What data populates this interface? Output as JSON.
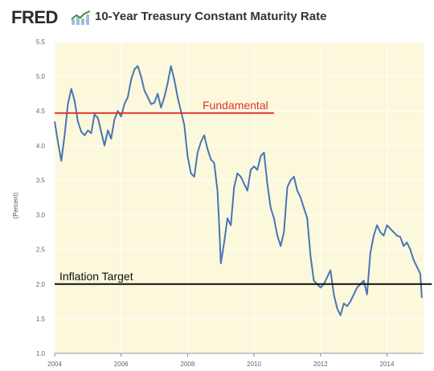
{
  "header": {
    "logo_text": "FRED",
    "title": "10-Year Treasury Constant Maturity Rate"
  },
  "chart_data": {
    "type": "line",
    "title": "10-Year Treasury Constant Maturity Rate",
    "ylabel": "(Percent)",
    "xlabel": "",
    "xlim": [
      2004,
      2015.1
    ],
    "ylim": [
      1.0,
      5.5
    ],
    "x_ticks": [
      "2004",
      "2006",
      "2008",
      "2010",
      "2012",
      "2014"
    ],
    "x_tick_values": [
      2004,
      2006,
      2008,
      2010,
      2012,
      2014
    ],
    "y_ticks": [
      "1.0",
      "1.5",
      "2.0",
      "2.5",
      "3.0",
      "3.5",
      "4.0",
      "4.5",
      "5.0",
      "5.5"
    ],
    "y_tick_values": [
      1.0,
      1.5,
      2.0,
      2.5,
      3.0,
      3.5,
      4.0,
      4.5,
      5.0,
      5.5
    ],
    "grid": true,
    "colors": {
      "line": "#4b74b3",
      "plot_bg": "#fbf8dc",
      "grid": "#ffffff",
      "fundamental": "#e0342a",
      "inflation": "#111111"
    },
    "series": [
      {
        "x": [
          2004.0,
          2004.1,
          2004.2,
          2004.3,
          2004.4,
          2004.5,
          2004.6,
          2004.7,
          2004.8,
          2004.9,
          2005.0,
          2005.1,
          2005.2,
          2005.3,
          2005.4,
          2005.5,
          2005.6,
          2005.7,
          2005.8,
          2005.9,
          2006.0,
          2006.1,
          2006.2,
          2006.3,
          2006.4,
          2006.5,
          2006.6,
          2006.7,
          2006.8,
          2006.9,
          2007.0,
          2007.1,
          2007.2,
          2007.3,
          2007.4,
          2007.5,
          2007.6,
          2007.7,
          2007.8,
          2007.9,
          2008.0,
          2008.1,
          2008.2,
          2008.3,
          2008.4,
          2008.5,
          2008.6,
          2008.7,
          2008.8,
          2008.9,
          2008.95,
          2009.0,
          2009.1,
          2009.2,
          2009.3,
          2009.4,
          2009.5,
          2009.6,
          2009.7,
          2009.8,
          2009.9,
          2010.0,
          2010.1,
          2010.2,
          2010.3,
          2010.4,
          2010.5,
          2010.6,
          2010.7,
          2010.8,
          2010.9,
          2011.0,
          2011.1,
          2011.2,
          2011.3,
          2011.4,
          2011.5,
          2011.6,
          2011.7,
          2011.8,
          2011.9,
          2012.0,
          2012.1,
          2012.2,
          2012.3,
          2012.4,
          2012.5,
          2012.6,
          2012.7,
          2012.8,
          2012.9,
          2013.0,
          2013.1,
          2013.2,
          2013.3,
          2013.4,
          2013.5,
          2013.6,
          2013.7,
          2013.8,
          2013.9,
          2014.0,
          2014.1,
          2014.2,
          2014.3,
          2014.4,
          2014.5,
          2014.6,
          2014.7,
          2014.8,
          2014.9,
          2015.0,
          2015.05
        ],
        "y": [
          4.35,
          4.05,
          3.78,
          4.15,
          4.6,
          4.82,
          4.65,
          4.35,
          4.2,
          4.15,
          4.22,
          4.18,
          4.45,
          4.4,
          4.2,
          4.0,
          4.22,
          4.1,
          4.38,
          4.5,
          4.42,
          4.6,
          4.7,
          4.95,
          5.1,
          5.15,
          5.0,
          4.8,
          4.7,
          4.6,
          4.62,
          4.75,
          4.55,
          4.7,
          4.9,
          5.15,
          4.95,
          4.7,
          4.5,
          4.3,
          3.85,
          3.6,
          3.55,
          3.9,
          4.05,
          4.15,
          3.95,
          3.8,
          3.75,
          3.35,
          2.85,
          2.3,
          2.6,
          2.95,
          2.85,
          3.4,
          3.6,
          3.55,
          3.45,
          3.35,
          3.65,
          3.7,
          3.65,
          3.85,
          3.9,
          3.45,
          3.1,
          2.95,
          2.7,
          2.55,
          2.75,
          3.4,
          3.5,
          3.55,
          3.35,
          3.25,
          3.1,
          2.95,
          2.4,
          2.05,
          2.0,
          1.95,
          2.0,
          2.1,
          2.2,
          1.85,
          1.65,
          1.55,
          1.72,
          1.68,
          1.75,
          1.85,
          1.95,
          2.0,
          2.05,
          1.85,
          2.45,
          2.7,
          2.85,
          2.75,
          2.7,
          2.85,
          2.8,
          2.75,
          2.7,
          2.68,
          2.55,
          2.6,
          2.5,
          2.35,
          2.25,
          2.15,
          1.8
        ]
      }
    ],
    "annotations": [
      {
        "label": "Fundamental",
        "value": 4.47,
        "x_start": 2004.0,
        "x_end": 2010.6,
        "color": "#e0342a"
      },
      {
        "label": "Inflation Target",
        "value": 2.0,
        "x_start": 2004.0,
        "x_end": 2015.35,
        "color": "#111111"
      }
    ]
  }
}
